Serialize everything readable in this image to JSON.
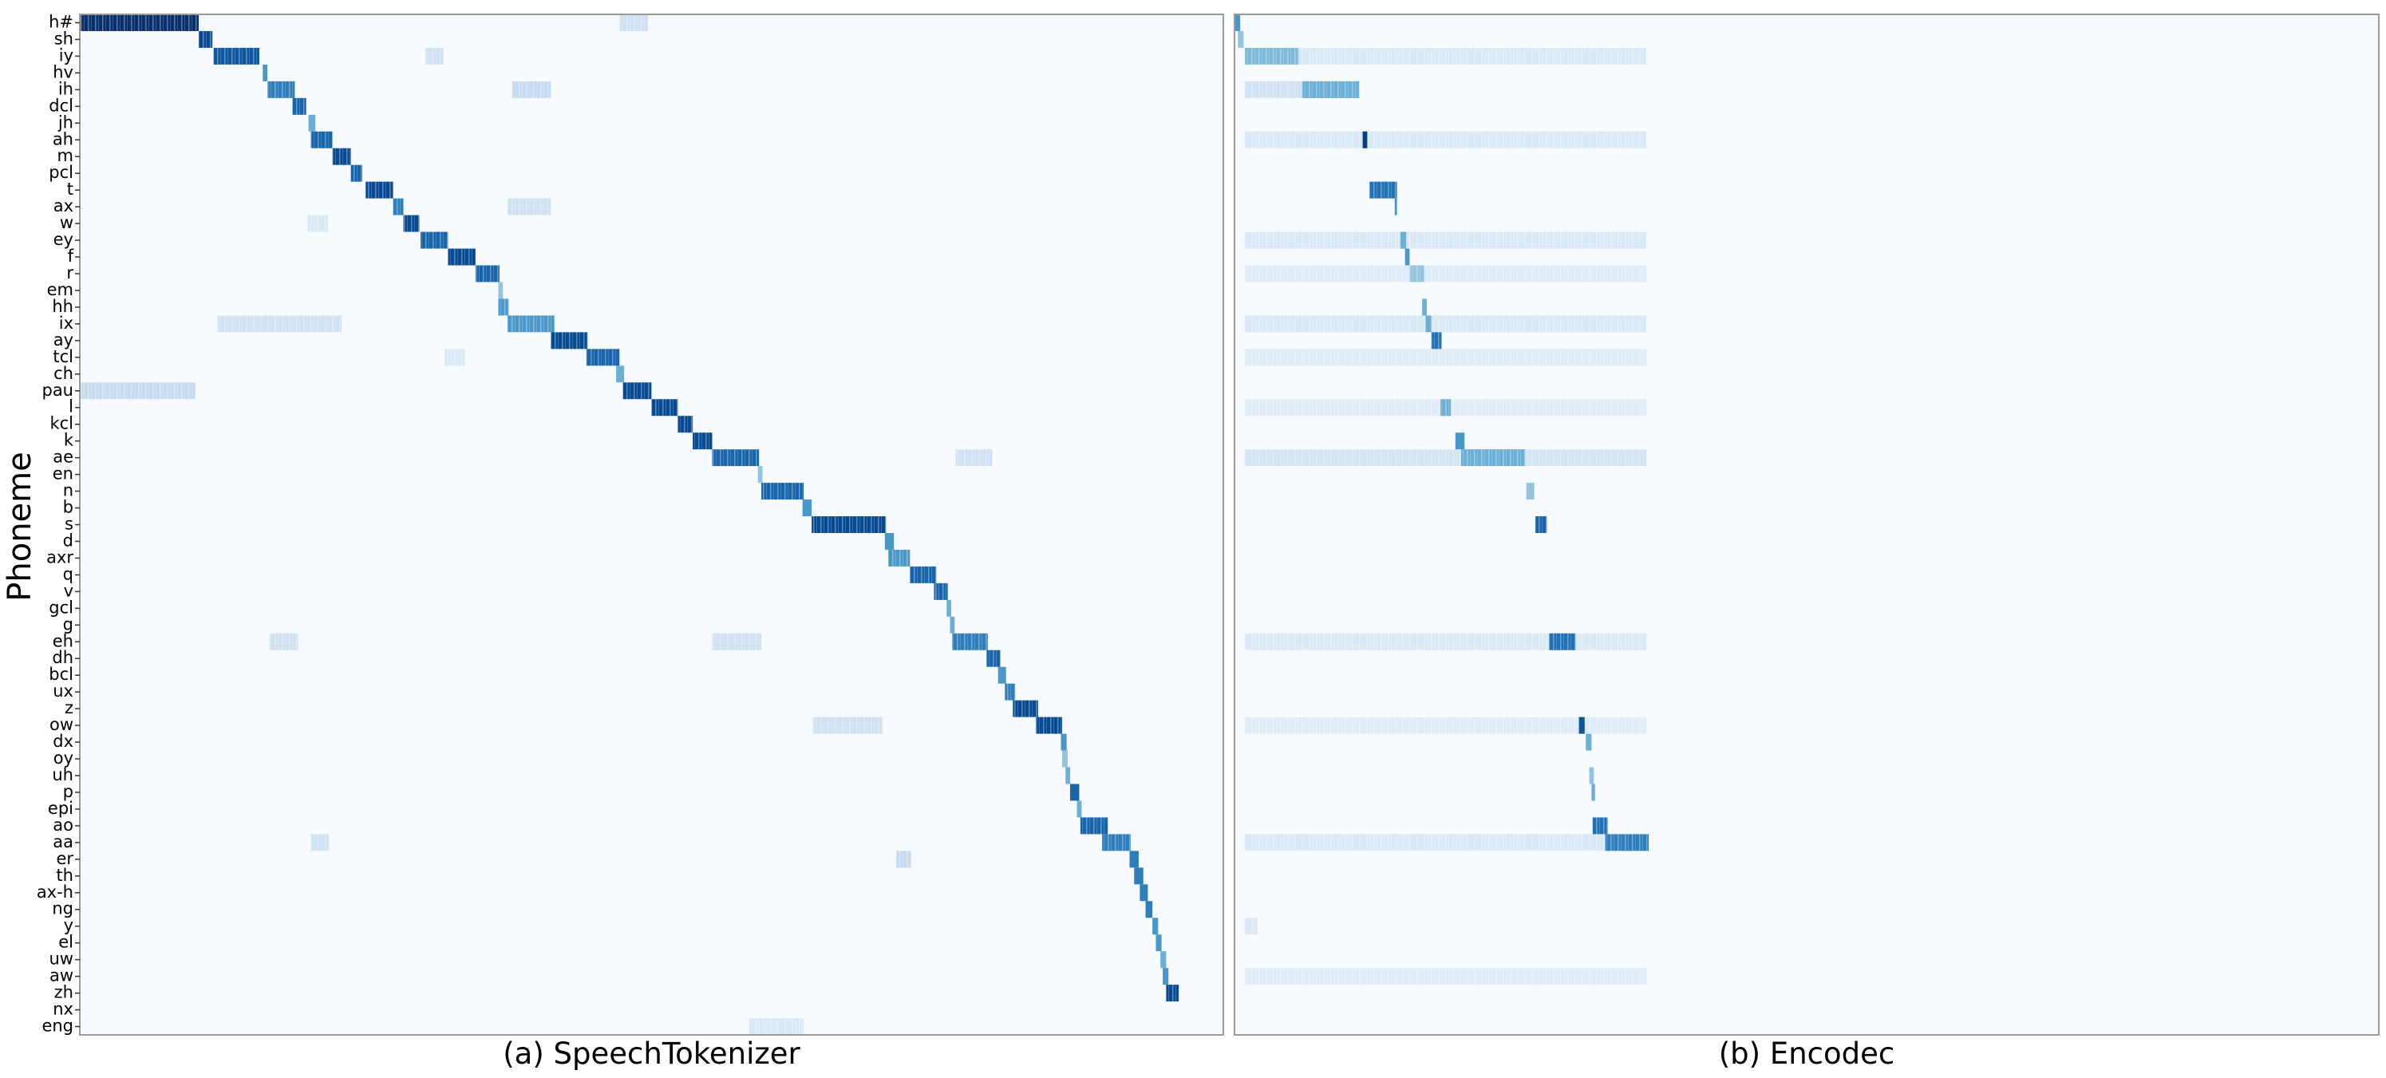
{
  "chart_data": [
    {
      "type": "heatmap",
      "title": "(a) SpeechTokenizer",
      "ylabel": "Phoneme",
      "categories": [
        "h#",
        "sh",
        "iy",
        "hv",
        "ih",
        "dcl",
        "jh",
        "ah",
        "m",
        "pcl",
        "t",
        "ax",
        "w",
        "ey",
        "f",
        "r",
        "em",
        "hh",
        "ix",
        "ay",
        "tcl",
        "ch",
        "pau",
        "l",
        "kcl",
        "k",
        "ae",
        "en",
        "n",
        "b",
        "s",
        "d",
        "axr",
        "q",
        "v",
        "gcl",
        "g",
        "eh",
        "dh",
        "bcl",
        "ux",
        "z",
        "ow",
        "dx",
        "oy",
        "uh",
        "p",
        "epi",
        "ao",
        "aa",
        "er",
        "th",
        "ax-h",
        "ng",
        "y",
        "el",
        "uw",
        "aw",
        "zh",
        "nx",
        "eng"
      ],
      "xlim": [
        0,
        1000
      ],
      "vlim": [
        0,
        1
      ],
      "colormap": [
        "#f7fbff",
        "#deebf7",
        "#c6dbef",
        "#9ecae1",
        "#6baed6",
        "#4292c6",
        "#2171b5",
        "#08519c",
        "#08306b"
      ],
      "cells": [
        [
          22,
          0,
          101,
          0.25
        ],
        [
          2,
          302,
          318,
          0.2
        ],
        [
          4,
          378,
          412,
          0.25
        ],
        [
          18,
          120,
          229,
          0.2
        ],
        [
          26,
          766,
          798,
          0.2
        ],
        [
          49,
          202,
          218,
          0.2
        ],
        [
          50,
          714,
          727,
          0.25
        ],
        [
          42,
          641,
          702,
          0.2
        ],
        [
          37,
          166,
          191,
          0.2
        ],
        [
          37,
          553,
          596,
          0.2
        ],
        [
          11,
          374,
          412,
          0.2
        ],
        [
          0,
          472,
          497,
          0.2
        ],
        [
          12,
          199,
          217,
          0.15
        ],
        [
          60,
          585,
          633,
          0.15
        ],
        [
          20,
          319,
          337,
          0.15
        ],
        [
          0,
          0,
          104,
          1
        ],
        [
          1,
          104,
          116,
          0.9
        ],
        [
          2,
          117,
          157,
          0.85
        ],
        [
          3,
          160,
          164,
          0.6
        ],
        [
          4,
          164,
          188,
          0.7
        ],
        [
          5,
          186,
          198,
          0.8
        ],
        [
          6,
          200,
          206,
          0.5
        ],
        [
          7,
          202,
          221,
          0.8
        ],
        [
          8,
          221,
          237,
          0.9
        ],
        [
          9,
          237,
          247,
          0.8
        ],
        [
          10,
          250,
          274,
          0.9
        ],
        [
          11,
          274,
          283,
          0.7
        ],
        [
          12,
          283,
          297,
          0.9
        ],
        [
          13,
          298,
          322,
          0.8
        ],
        [
          14,
          322,
          346,
          0.9
        ],
        [
          15,
          346,
          367,
          0.8
        ],
        [
          16,
          366,
          370,
          0.4
        ],
        [
          17,
          366,
          375,
          0.6
        ],
        [
          18,
          374,
          415,
          0.6
        ],
        [
          19,
          412,
          444,
          0.9
        ],
        [
          20,
          443,
          472,
          0.8
        ],
        [
          21,
          469,
          476,
          0.5
        ],
        [
          22,
          475,
          500,
          0.9
        ],
        [
          23,
          500,
          523,
          0.9
        ],
        [
          24,
          523,
          536,
          0.9
        ],
        [
          25,
          536,
          553,
          0.9
        ],
        [
          26,
          553,
          594,
          0.8
        ],
        [
          27,
          593,
          597,
          0.4
        ],
        [
          28,
          596,
          633,
          0.8
        ],
        [
          29,
          632,
          640,
          0.6
        ],
        [
          30,
          640,
          705,
          0.9
        ],
        [
          31,
          704,
          712,
          0.6
        ],
        [
          32,
          707,
          726,
          0.6
        ],
        [
          33,
          726,
          749,
          0.8
        ],
        [
          34,
          747,
          759,
          0.8
        ],
        [
          35,
          758,
          762,
          0.5
        ],
        [
          36,
          761,
          765,
          0.5
        ],
        [
          37,
          763,
          794,
          0.7
        ],
        [
          38,
          793,
          805,
          0.8
        ],
        [
          39,
          803,
          810,
          0.6
        ],
        [
          40,
          809,
          818,
          0.7
        ],
        [
          41,
          816,
          838,
          0.9
        ],
        [
          42,
          836,
          859,
          0.9
        ],
        [
          43,
          858,
          863,
          0.6
        ],
        [
          44,
          859,
          864,
          0.4
        ],
        [
          45,
          862,
          866,
          0.5
        ],
        [
          46,
          866,
          874,
          0.8
        ],
        [
          47,
          872,
          876,
          0.5
        ],
        [
          48,
          875,
          899,
          0.8
        ],
        [
          49,
          894,
          919,
          0.7
        ],
        [
          50,
          918,
          926,
          0.7
        ],
        [
          51,
          922,
          930,
          0.7
        ],
        [
          52,
          927,
          934,
          0.7
        ],
        [
          53,
          932,
          938,
          0.7
        ],
        [
          54,
          938,
          943,
          0.6
        ],
        [
          55,
          941,
          946,
          0.6
        ],
        [
          56,
          945,
          950,
          0.5
        ],
        [
          57,
          947,
          952,
          0.6
        ],
        [
          58,
          950,
          961,
          0.9
        ]
      ]
    },
    {
      "type": "heatmap",
      "title": "(b) Encodec",
      "xlim": [
        0,
        1000
      ],
      "vlim": [
        0,
        1
      ],
      "colormap": [
        "#f7fbff",
        "#deebf7",
        "#c6dbef",
        "#9ecae1",
        "#6baed6",
        "#4292c6",
        "#2171b5",
        "#08519c",
        "#08306b"
      ],
      "cells": [
        [
          2,
          56,
          360,
          0.15
        ],
        [
          7,
          9,
          360,
          0.15
        ],
        [
          13,
          9,
          360,
          0.15
        ],
        [
          15,
          9,
          360,
          0.12
        ],
        [
          18,
          9,
          360,
          0.15
        ],
        [
          20,
          9,
          360,
          0.12
        ],
        [
          23,
          9,
          360,
          0.12
        ],
        [
          26,
          9,
          360,
          0.18
        ],
        [
          37,
          9,
          360,
          0.15
        ],
        [
          42,
          9,
          360,
          0.12
        ],
        [
          49,
          9,
          324,
          0.15
        ],
        [
          57,
          9,
          360,
          0.12
        ],
        [
          54,
          9,
          20,
          0.15
        ],
        [
          4,
          9,
          109,
          0.2
        ],
        [
          0,
          0,
          5,
          0.6
        ],
        [
          1,
          3,
          8,
          0.4
        ],
        [
          2,
          9,
          56,
          0.45
        ],
        [
          4,
          59,
          109,
          0.5
        ],
        [
          7,
          112,
          116,
          0.95
        ],
        [
          10,
          118,
          142,
          0.75
        ],
        [
          11,
          140,
          142,
          0.6
        ],
        [
          13,
          145,
          150,
          0.5
        ],
        [
          14,
          149,
          153,
          0.6
        ],
        [
          15,
          153,
          166,
          0.4
        ],
        [
          17,
          164,
          168,
          0.5
        ],
        [
          18,
          167,
          172,
          0.5
        ],
        [
          19,
          172,
          181,
          0.75
        ],
        [
          23,
          180,
          189,
          0.5
        ],
        [
          25,
          193,
          201,
          0.6
        ],
        [
          26,
          198,
          254,
          0.5
        ],
        [
          28,
          255,
          262,
          0.4
        ],
        [
          30,
          263,
          273,
          0.8
        ],
        [
          37,
          275,
          298,
          0.75
        ],
        [
          42,
          301,
          306,
          0.85
        ],
        [
          43,
          307,
          312,
          0.5
        ],
        [
          45,
          310,
          314,
          0.4
        ],
        [
          46,
          312,
          315,
          0.5
        ],
        [
          48,
          313,
          326,
          0.75
        ],
        [
          49,
          324,
          362,
          0.7
        ]
      ]
    }
  ]
}
